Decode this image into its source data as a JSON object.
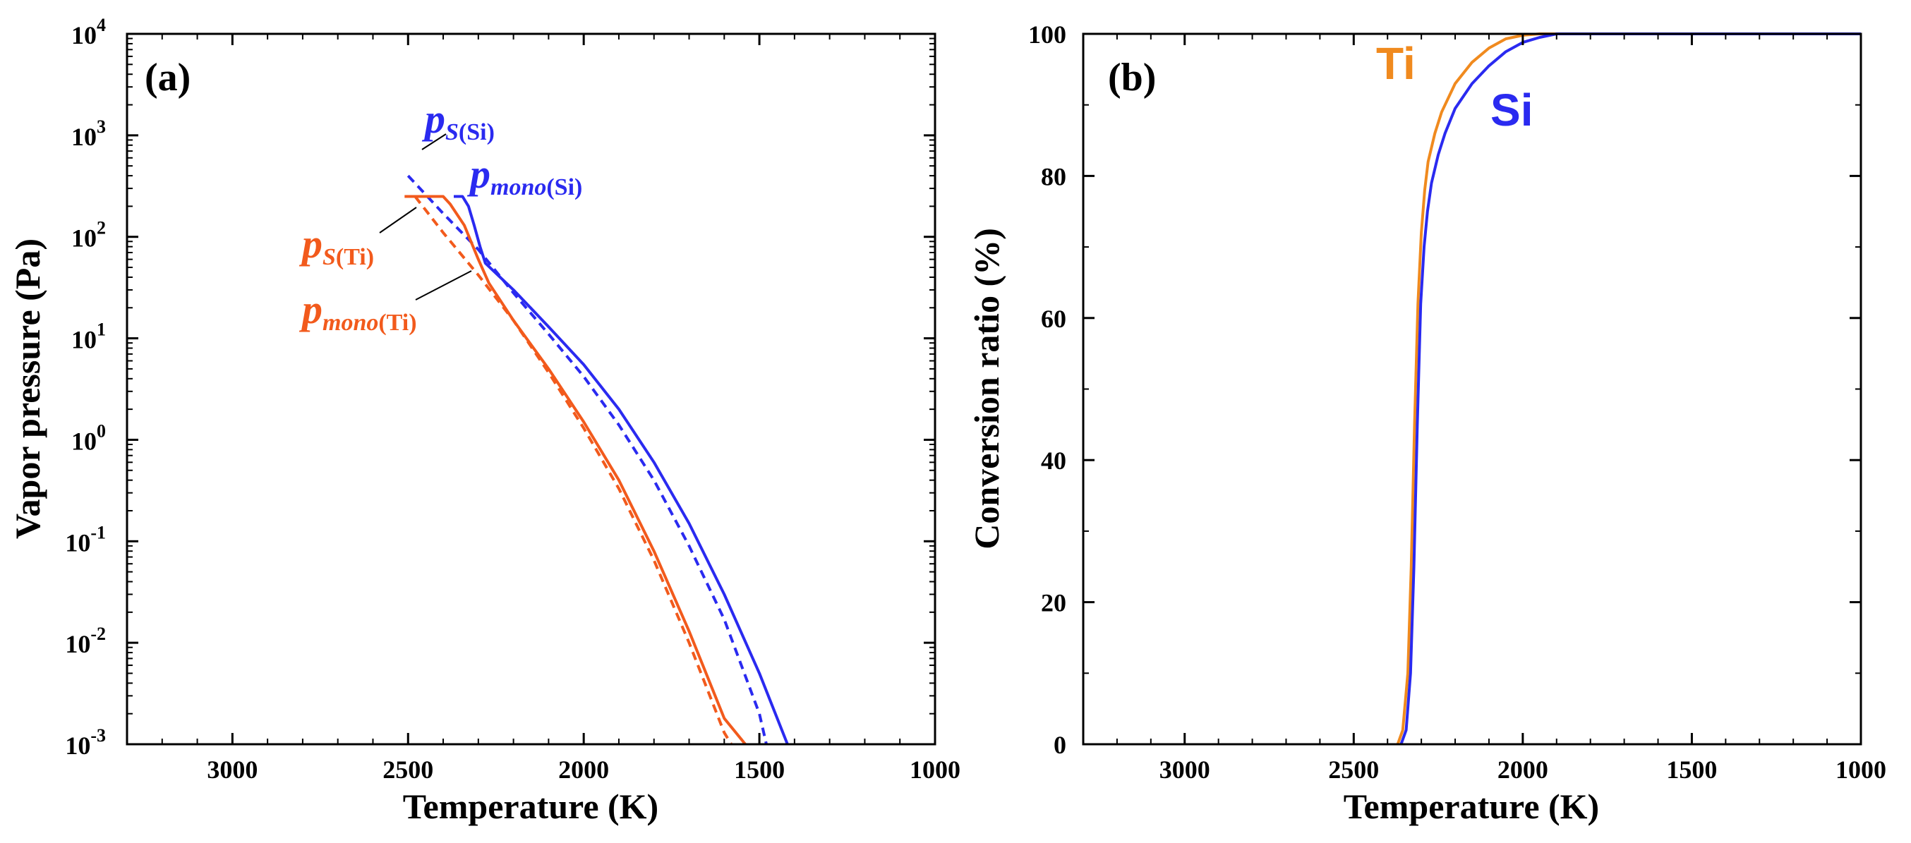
{
  "colors": {
    "si": "#2a2af0",
    "ti_a": "#f25a1c",
    "ti_b": "#f08a1e",
    "axis": "#000000"
  },
  "chart_data": [
    {
      "panel": "(a)",
      "type": "line",
      "xlabel": "Temperature (K)",
      "ylabel": "Vapor pressure (Pa)",
      "xlim": [
        3300,
        1000
      ],
      "x_reversed": true,
      "ylim": [
        0.001,
        10000
      ],
      "yscale": "log",
      "xticks": [
        3000,
        2500,
        2000,
        1500,
        1000
      ],
      "yticks": [
        {
          "base": "10",
          "exp": "-3",
          "value": 0.001
        },
        {
          "base": "10",
          "exp": "-2",
          "value": 0.01
        },
        {
          "base": "10",
          "exp": "-1",
          "value": 0.1
        },
        {
          "base": "10",
          "exp": "0",
          "value": 1
        },
        {
          "base": "10",
          "exp": "1",
          "value": 10
        },
        {
          "base": "10",
          "exp": "2",
          "value": 100
        },
        {
          "base": "10",
          "exp": "3",
          "value": 1000
        },
        {
          "base": "10",
          "exp": "4",
          "value": 10000
        }
      ],
      "series": [
        {
          "name": "p_mono(Si)",
          "color_key": "si",
          "style": "solid",
          "x": [
            2370,
            2345,
            2328,
            2312,
            2295,
            2280,
            2200,
            2100,
            2000,
            1900,
            1800,
            1700,
            1600,
            1500,
            1420
          ],
          "y": [
            250,
            250,
            200,
            130,
            80,
            55,
            30,
            13,
            5.5,
            2,
            0.6,
            0.15,
            0.03,
            0.005,
            0.001
          ]
        },
        {
          "name": "p_S(Si)",
          "color_key": "si",
          "style": "dashed",
          "x": [
            2500,
            2400,
            2300,
            2200,
            2100,
            2000,
            1900,
            1800,
            1700,
            1600,
            1500,
            1480
          ],
          "y": [
            400,
            170,
            75,
            28,
            11,
            4.2,
            1.4,
            0.4,
            0.09,
            0.017,
            0.002,
            0.001
          ]
        },
        {
          "name": "p_mono(Ti)",
          "color_key": "ti_a",
          "style": "solid",
          "x": [
            2510,
            2400,
            2380,
            2340,
            2300,
            2270,
            2200,
            2100,
            2000,
            1900,
            1800,
            1700,
            1600,
            1540
          ],
          "y": [
            250,
            250,
            210,
            130,
            60,
            35,
            15,
            5,
            1.5,
            0.4,
            0.08,
            0.013,
            0.0018,
            0.001
          ]
        },
        {
          "name": "p_S(Ti)",
          "color_key": "ti_a",
          "style": "dashed",
          "x": [
            2480,
            2400,
            2300,
            2200,
            2100,
            2000,
            1900,
            1800,
            1700,
            1600,
            1580
          ],
          "y": [
            250,
            110,
            42,
            15,
            4.6,
            1.3,
            0.33,
            0.065,
            0.01,
            0.0013,
            0.001
          ]
        }
      ],
      "annotations": [
        {
          "key": "pS_Si",
          "main": "p",
          "sub": "S",
          "paren": "(Si)",
          "color_key": "si"
        },
        {
          "key": "pmono_Si",
          "main": "p",
          "sub": "mono",
          "paren": "(Si)",
          "color_key": "si"
        },
        {
          "key": "pS_Ti",
          "main": "p",
          "sub": "S",
          "paren": "(Ti)",
          "color_key": "ti_a"
        },
        {
          "key": "pmono_Ti",
          "main": "p",
          "sub": "mono",
          "paren": "(Ti)",
          "color_key": "ti_a"
        }
      ]
    },
    {
      "panel": "(b)",
      "type": "line",
      "xlabel": "Temperature (K)",
      "ylabel": "Conversion ratio (%)",
      "xlim": [
        3300,
        1000
      ],
      "x_reversed": true,
      "ylim": [
        0,
        100
      ],
      "xticks": [
        3000,
        2500,
        2000,
        1500,
        1000
      ],
      "yticks": [
        0,
        20,
        40,
        60,
        80,
        100
      ],
      "series": [
        {
          "name": "Ti",
          "color_key": "ti_b",
          "x": [
            2370,
            2355,
            2340,
            2330,
            2320,
            2310,
            2300,
            2290,
            2280,
            2260,
            2240,
            2200,
            2150,
            2100,
            2050,
            2000,
            1950,
            1000
          ],
          "y": [
            0,
            2,
            10,
            25,
            45,
            62,
            72,
            78,
            82,
            86,
            89,
            93,
            96,
            98,
            99.3,
            99.8,
            100,
            100
          ]
        },
        {
          "name": "Si",
          "color_key": "si",
          "x": [
            2360,
            2345,
            2332,
            2322,
            2312,
            2302,
            2292,
            2282,
            2270,
            2250,
            2230,
            2200,
            2150,
            2100,
            2050,
            2000,
            1950,
            1900,
            1000
          ],
          "y": [
            0,
            2,
            10,
            25,
            45,
            62,
            70,
            75,
            79,
            83,
            86,
            89.5,
            93,
            95.5,
            97.5,
            98.8,
            99.5,
            100,
            100
          ]
        }
      ],
      "labels": [
        {
          "text": "Ti",
          "color_key": "ti_b"
        },
        {
          "text": "Si",
          "color_key": "si"
        }
      ]
    }
  ]
}
